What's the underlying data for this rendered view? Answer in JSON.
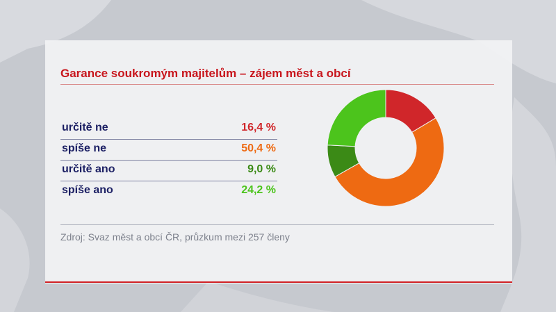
{
  "header": {
    "title": "Garance soukromým majitelům – zájem měst a obcí"
  },
  "source": {
    "text": "Zdroj: Svaz měst a obcí ČR, průzkum mezi 257 členy"
  },
  "legend": [
    {
      "label": "určitě ne",
      "value_text": "16,4 %",
      "color": "#d0262a"
    },
    {
      "label": "spíše ne",
      "value_text": "50,4 %",
      "color": "#ee6a12"
    },
    {
      "label": "určitě ano",
      "value_text": "9,0 %",
      "color": "#3b8a16"
    },
    {
      "label": "spíše ano",
      "value_text": "24,2 %",
      "color": "#4cc41c"
    }
  ],
  "chart_data": {
    "type": "pie",
    "title": "Garance soukromým majitelům – zájem měst a obcí",
    "categories": [
      "určitě ne",
      "spíše ne",
      "určitě ano",
      "spíše ano"
    ],
    "values": [
      16.4,
      50.4,
      9.0,
      24.2
    ],
    "colors": [
      "#d0262a",
      "#ee6a12",
      "#3b8a16",
      "#4cc41c"
    ],
    "donut": true
  }
}
